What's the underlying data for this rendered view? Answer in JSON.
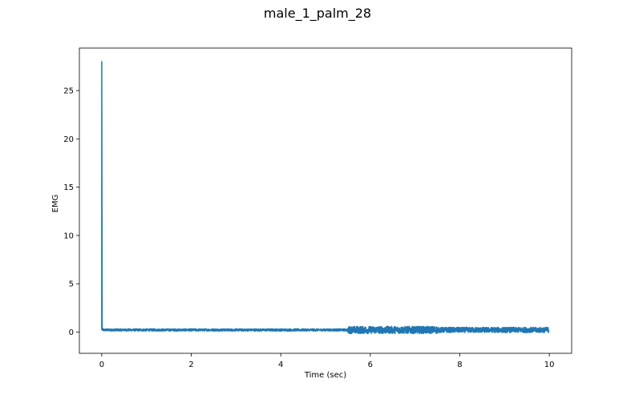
{
  "figure": {
    "title": "male_1_palm_28"
  },
  "chart_data": {
    "type": "line",
    "title": "male_1_palm_28",
    "xlabel": "Time (sec)",
    "ylabel": "EMG",
    "xlim": [
      -0.5,
      10.5
    ],
    "ylim": [
      -2.2,
      29.4
    ],
    "xticks": [
      0,
      2,
      4,
      6,
      8,
      10
    ],
    "yticks": [
      0,
      5,
      10,
      15,
      20,
      25
    ],
    "grid": false,
    "series": [
      {
        "color": "#1f77b4",
        "signal": {
          "x_start": 0.0,
          "x_end": 10.0,
          "spike": {
            "x": 0.0,
            "y": 28.0
          },
          "baseline": 0.22,
          "segments": [
            {
              "x_from": 0.02,
              "x_to": 5.5,
              "amplitude": 0.12
            },
            {
              "x_from": 5.5,
              "x_to": 7.5,
              "amplitude": 0.38
            },
            {
              "x_from": 7.5,
              "x_to": 10.0,
              "amplitude": 0.28
            }
          ]
        }
      }
    ]
  }
}
